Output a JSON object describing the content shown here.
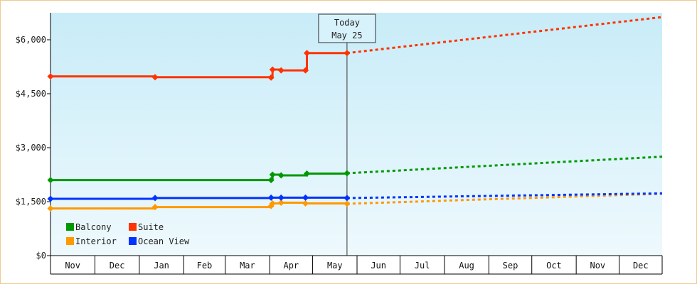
{
  "chart_data": {
    "type": "line",
    "title": "",
    "xlabel": "",
    "ylabel": "",
    "ylim": [
      0,
      6750
    ],
    "y_ticks": [
      {
        "value": 0,
        "label": "$0"
      },
      {
        "value": 1500,
        "label": "$1,500"
      },
      {
        "value": 3000,
        "label": "$3,000"
      },
      {
        "value": 4500,
        "label": "$4,500"
      },
      {
        "value": 6000,
        "label": "$6,000"
      }
    ],
    "x_range": [
      "2023-10-31",
      "2024-12-31"
    ],
    "months": [
      {
        "label": "Nov",
        "start": "2023-11-01",
        "end": "2023-11-30"
      },
      {
        "label": "Dec",
        "start": "2023-12-01",
        "end": "2023-12-31"
      },
      {
        "label": "Jan",
        "start": "2024-01-01",
        "end": "2024-01-31"
      },
      {
        "label": "Feb",
        "start": "2024-02-01",
        "end": "2024-02-29"
      },
      {
        "label": "Mar",
        "start": "2024-03-01",
        "end": "2024-03-31"
      },
      {
        "label": "Apr",
        "start": "2024-04-01",
        "end": "2024-04-30"
      },
      {
        "label": "May",
        "start": "2024-05-01",
        "end": "2024-05-31"
      },
      {
        "label": "Jun",
        "start": "2024-06-01",
        "end": "2024-06-30"
      },
      {
        "label": "Jul",
        "start": "2024-07-01",
        "end": "2024-07-31"
      },
      {
        "label": "Aug",
        "start": "2024-08-01",
        "end": "2024-08-31"
      },
      {
        "label": "Sep",
        "start": "2024-09-01",
        "end": "2024-09-30"
      },
      {
        "label": "Oct",
        "start": "2024-10-01",
        "end": "2024-10-31"
      },
      {
        "label": "Nov",
        "start": "2024-11-01",
        "end": "2024-11-30"
      },
      {
        "label": "Dec",
        "start": "2024-12-01",
        "end": "2024-12-31"
      }
    ],
    "today": {
      "date": "2024-05-25",
      "label_line1": "Today",
      "label_line2": "May 25"
    },
    "grid": false,
    "legend_position": "bottom-left",
    "series": [
      {
        "name": "Balcony",
        "color": "#009900",
        "historical": [
          {
            "date": "2023-10-31",
            "value": 2100
          },
          {
            "date": "2024-04-02",
            "value": 2100
          },
          {
            "date": "2024-04-03",
            "value": 2250
          },
          {
            "date": "2024-04-09",
            "value": 2230
          },
          {
            "date": "2024-04-26",
            "value": 2230
          },
          {
            "date": "2024-04-27",
            "value": 2280
          },
          {
            "date": "2024-05-25",
            "value": 2290
          }
        ],
        "markers": [
          "2023-10-31",
          "2024-04-02",
          "2024-04-03",
          "2024-04-09",
          "2024-04-27",
          "2024-05-25"
        ],
        "projected": [
          {
            "date": "2024-05-25",
            "value": 2290
          },
          {
            "date": "2024-12-31",
            "value": 2750
          }
        ]
      },
      {
        "name": "Suite",
        "color": "#ff3300",
        "historical": [
          {
            "date": "2023-10-31",
            "value": 4980
          },
          {
            "date": "2024-01-12",
            "value": 4960
          },
          {
            "date": "2024-04-02",
            "value": 4950
          },
          {
            "date": "2024-04-03",
            "value": 5170
          },
          {
            "date": "2024-04-09",
            "value": 5150
          },
          {
            "date": "2024-04-26",
            "value": 5150
          },
          {
            "date": "2024-04-27",
            "value": 5630
          },
          {
            "date": "2024-05-25",
            "value": 5630
          }
        ],
        "markers": [
          "2023-10-31",
          "2024-01-12",
          "2024-04-02",
          "2024-04-03",
          "2024-04-09",
          "2024-04-26",
          "2024-04-27",
          "2024-05-25"
        ],
        "projected": [
          {
            "date": "2024-05-25",
            "value": 5630
          },
          {
            "date": "2024-12-31",
            "value": 6630
          }
        ]
      },
      {
        "name": "Interior",
        "color": "#ff9900",
        "historical": [
          {
            "date": "2023-10-31",
            "value": 1310
          },
          {
            "date": "2024-01-12",
            "value": 1350
          },
          {
            "date": "2024-04-02",
            "value": 1380
          },
          {
            "date": "2024-04-03",
            "value": 1450
          },
          {
            "date": "2024-04-09",
            "value": 1470
          },
          {
            "date": "2024-04-26",
            "value": 1450
          },
          {
            "date": "2024-05-25",
            "value": 1440
          }
        ],
        "markers": [
          "2023-10-31",
          "2024-01-12",
          "2024-04-02",
          "2024-04-03",
          "2024-04-09",
          "2024-04-26",
          "2024-05-25"
        ],
        "projected": [
          {
            "date": "2024-05-25",
            "value": 1440
          },
          {
            "date": "2024-12-31",
            "value": 1720
          }
        ]
      },
      {
        "name": "Ocean View",
        "color": "#0033ff",
        "historical": [
          {
            "date": "2023-10-31",
            "value": 1580
          },
          {
            "date": "2024-01-12",
            "value": 1600
          },
          {
            "date": "2024-04-02",
            "value": 1610
          },
          {
            "date": "2024-04-09",
            "value": 1610
          },
          {
            "date": "2024-05-25",
            "value": 1600
          }
        ],
        "markers": [
          "2023-10-31",
          "2024-01-12",
          "2024-04-02",
          "2024-04-09",
          "2024-04-26",
          "2024-05-25"
        ],
        "projected": [
          {
            "date": "2024-05-25",
            "value": 1600
          },
          {
            "date": "2024-12-31",
            "value": 1730
          }
        ]
      }
    ],
    "legend": [
      {
        "name": "Balcony",
        "color": "#009900"
      },
      {
        "name": "Suite",
        "color": "#ff3300"
      },
      {
        "name": "Interior",
        "color": "#ff9900"
      },
      {
        "name": "Ocean View",
        "color": "#0033ff"
      }
    ]
  }
}
